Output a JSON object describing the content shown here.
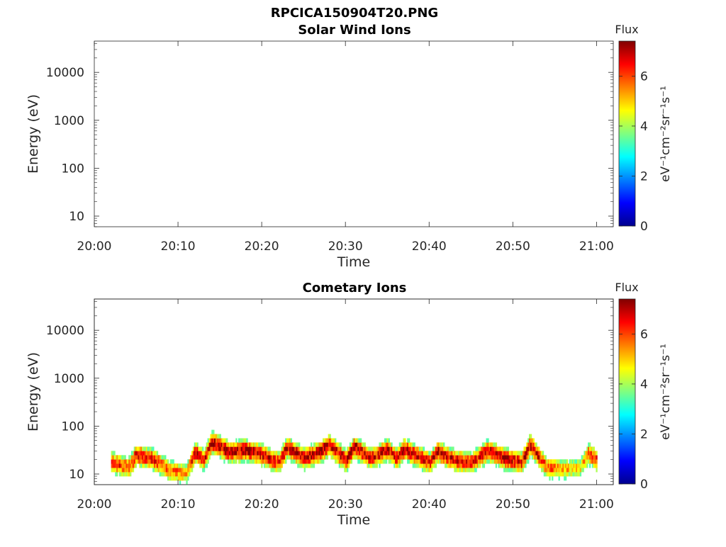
{
  "figure_title": "RPCICA150904T20.PNG",
  "colorbar": {
    "title": "Flux",
    "label": "eV⁻¹cm⁻²sr⁻¹s⁻¹",
    "ticks": [
      0,
      2,
      4,
      6
    ],
    "range": [
      0,
      7.4
    ],
    "colormap": "jet"
  },
  "chart_data": [
    {
      "type": "heatmap",
      "title": "Solar Wind Ions",
      "xlabel": "Time",
      "ylabel": "Energy (eV)",
      "x_ticks": [
        "20:00",
        "20:10",
        "20:20",
        "20:30",
        "20:40",
        "20:50",
        "21:00"
      ],
      "y_ticks": [
        10,
        100,
        1000,
        10000
      ],
      "y_scale": "log",
      "xlim": [
        "20:00",
        "21:02"
      ],
      "ylim": [
        6,
        45000
      ],
      "z_label": "Flux",
      "series": []
    },
    {
      "type": "heatmap",
      "title": "Cometary Ions",
      "xlabel": "Time",
      "ylabel": "Energy (eV)",
      "x_ticks": [
        "20:00",
        "20:10",
        "20:20",
        "20:30",
        "20:40",
        "20:50",
        "21:00"
      ],
      "y_ticks": [
        10,
        100,
        1000,
        10000
      ],
      "y_scale": "log",
      "xlim": [
        "20:00",
        "21:02"
      ],
      "ylim": [
        6,
        45000
      ],
      "z_label": "Flux",
      "data_time_range": [
        "20:02",
        "21:00"
      ],
      "peak_energy_trace": [
        {
          "t": "20:02",
          "energy_ev": 18,
          "flux": 6.5
        },
        {
          "t": "20:04",
          "energy_ev": 14,
          "flux": 6.0
        },
        {
          "t": "20:05",
          "energy_ev": 26,
          "flux": 6.8
        },
        {
          "t": "20:07",
          "energy_ev": 21,
          "flux": 6.5
        },
        {
          "t": "20:09",
          "energy_ev": 12,
          "flux": 5.6
        },
        {
          "t": "20:11",
          "energy_ev": 11,
          "flux": 5.5
        },
        {
          "t": "20:12",
          "energy_ev": 30,
          "flux": 6.9
        },
        {
          "t": "20:13",
          "energy_ev": 20,
          "flux": 6.5
        },
        {
          "t": "20:14",
          "energy_ev": 48,
          "flux": 7.0
        },
        {
          "t": "20:16",
          "energy_ev": 30,
          "flux": 7.0
        },
        {
          "t": "20:18",
          "energy_ev": 33,
          "flux": 7.0
        },
        {
          "t": "20:20",
          "energy_ev": 26,
          "flux": 6.8
        },
        {
          "t": "20:22",
          "energy_ev": 18,
          "flux": 6.5
        },
        {
          "t": "20:23",
          "energy_ev": 38,
          "flux": 7.0
        },
        {
          "t": "20:25",
          "energy_ev": 22,
          "flux": 6.8
        },
        {
          "t": "20:27",
          "energy_ev": 30,
          "flux": 7.0
        },
        {
          "t": "20:28",
          "energy_ev": 42,
          "flux": 7.0
        },
        {
          "t": "20:30",
          "energy_ev": 20,
          "flux": 6.8
        },
        {
          "t": "20:31",
          "energy_ev": 38,
          "flux": 7.0
        },
        {
          "t": "20:33",
          "energy_ev": 22,
          "flux": 6.5
        },
        {
          "t": "20:35",
          "energy_ev": 34,
          "flux": 6.9
        },
        {
          "t": "20:36",
          "energy_ev": 22,
          "flux": 6.3
        },
        {
          "t": "20:37",
          "energy_ev": 34,
          "flux": 7.0
        },
        {
          "t": "20:40",
          "energy_ev": 18,
          "flux": 6.5
        },
        {
          "t": "20:41",
          "energy_ev": 30,
          "flux": 6.9
        },
        {
          "t": "20:43",
          "energy_ev": 20,
          "flux": 6.6
        },
        {
          "t": "20:45",
          "energy_ev": 18,
          "flux": 6.3
        },
        {
          "t": "20:47",
          "energy_ev": 32,
          "flux": 7.0
        },
        {
          "t": "20:49",
          "energy_ev": 22,
          "flux": 7.0
        },
        {
          "t": "20:51",
          "energy_ev": 18,
          "flux": 6.6
        },
        {
          "t": "20:52",
          "energy_ev": 42,
          "flux": 7.0
        },
        {
          "t": "20:54",
          "energy_ev": 14,
          "flux": 6.0
        },
        {
          "t": "20:56",
          "energy_ev": 13,
          "flux": 5.3
        },
        {
          "t": "20:58",
          "energy_ev": 14,
          "flux": 4.8
        },
        {
          "t": "20:59",
          "energy_ev": 28,
          "flux": 6.0
        },
        {
          "t": "21:00",
          "energy_ev": 20,
          "flux": 6.3
        }
      ]
    }
  ]
}
